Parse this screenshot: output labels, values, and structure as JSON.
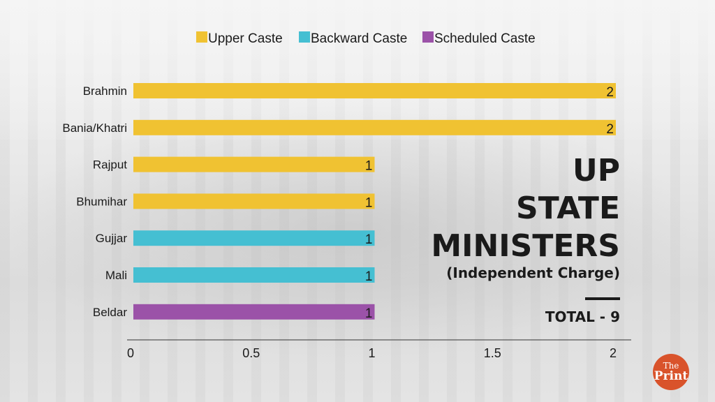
{
  "chart_data": {
    "type": "bar",
    "orientation": "horizontal",
    "title": "UP STATE MINISTERS",
    "subtitle": "(Independent Charge)",
    "total_label": "TOTAL - 9",
    "categories": [
      "Brahmin",
      "Bania/Khatri",
      "Rajput",
      "Bhumihar",
      "Gujjar",
      "Mali",
      "Beldar"
    ],
    "values": [
      2,
      2,
      1,
      1,
      1,
      1,
      1
    ],
    "groups": [
      "Upper Caste",
      "Upper Caste",
      "Upper Caste",
      "Upper Caste",
      "Backward Caste",
      "Backward Caste",
      "Scheduled Caste"
    ],
    "legend": [
      {
        "name": "Upper Caste",
        "color": "#f0c232"
      },
      {
        "name": "Backward Caste",
        "color": "#45bfd2"
      },
      {
        "name": "Scheduled Caste",
        "color": "#9b52a8"
      }
    ],
    "legend_position": "top",
    "xlim": [
      0,
      2
    ],
    "xticks": [
      "0",
      "0.5",
      "1",
      "1.5",
      "2"
    ],
    "xtick_values": [
      0,
      0.5,
      1,
      1.5,
      2
    ],
    "grid": false
  },
  "title_lines": [
    "UP",
    "STATE",
    "MINISTERS"
  ],
  "logo": {
    "line1": "The",
    "line2": "Print",
    "color": "#d9532b"
  }
}
